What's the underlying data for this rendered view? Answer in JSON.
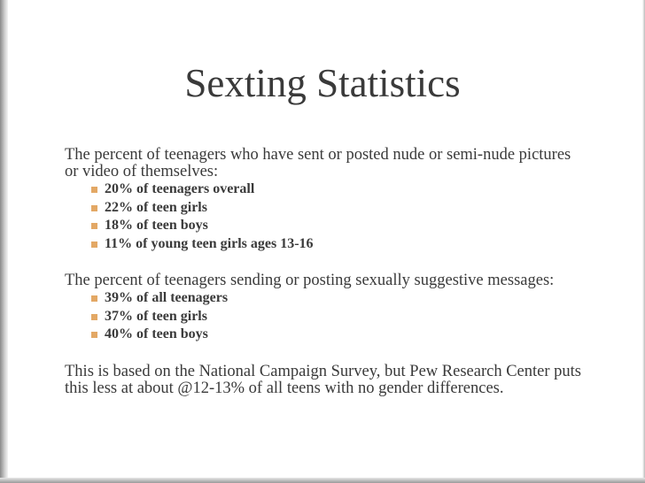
{
  "title": "Sexting Statistics",
  "sections": [
    {
      "text": "The percent of teenagers who have sent or posted nude or semi-nude pictures or video of themselves:",
      "bullets": [
        "20% of teenagers overall",
        "22% of teen girls",
        "18% of teen boys",
        "11% of young teen girls ages 13-16"
      ]
    },
    {
      "text": "The percent of teenagers sending or posting sexually suggestive messages:",
      "bullets": [
        "39% of all teenagers",
        "37% of teen girls",
        "40% of teen boys"
      ]
    },
    {
      "text": "This is based on the National Campaign Survey, but Pew Research Center puts this less at about @12-13% of all teens with no gender differences."
    }
  ]
}
